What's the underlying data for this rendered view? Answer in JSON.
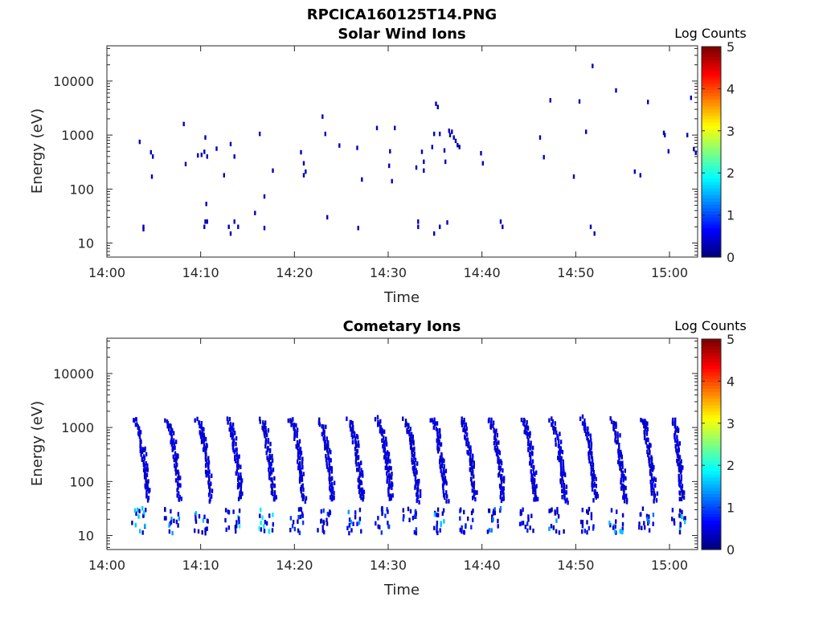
{
  "figure": {
    "title": "RPCICA160125T14.PNG"
  },
  "chart_data": [
    {
      "type": "heatmap",
      "title": "Solar Wind Ions",
      "xlabel": "Time",
      "ylabel": "Energy (eV)",
      "x_ticks": [
        "14:00",
        "14:10",
        "14:20",
        "14:30",
        "14:40",
        "14:50",
        "15:00"
      ],
      "x_range_minutes": [
        0,
        63
      ],
      "y_scale": "log",
      "y_ticks": [
        "10",
        "100",
        "1000",
        "10000"
      ],
      "y_range": [
        5.5,
        45000
      ],
      "colorbar": {
        "label": "Log Counts",
        "ticks": [
          "0",
          "1",
          "2",
          "3",
          "4",
          "5"
        ],
        "range": [
          0,
          5
        ],
        "colormap": "jet"
      },
      "grid": false,
      "points": [
        [
          3.5,
          750,
          0.3
        ],
        [
          3.9,
          20,
          0.3
        ],
        [
          3.9,
          18,
          0.3
        ],
        [
          4.7,
          480,
          0.3
        ],
        [
          4.9,
          400,
          0.3
        ],
        [
          4.8,
          170,
          0.3
        ],
        [
          8.2,
          1600,
          0.3
        ],
        [
          8.4,
          290,
          0.3
        ],
        [
          9.7,
          420,
          0.3
        ],
        [
          10.1,
          430,
          0.3
        ],
        [
          10.4,
          490,
          0.3
        ],
        [
          10.5,
          900,
          0.3
        ],
        [
          10.7,
          400,
          0.3
        ],
        [
          10.6,
          53,
          0.3
        ],
        [
          10.5,
          25,
          0.3
        ],
        [
          10.4,
          20,
          0.3
        ],
        [
          10.7,
          25,
          0.3
        ],
        [
          11.7,
          560,
          0.3
        ],
        [
          12.5,
          180,
          0.3
        ],
        [
          13.0,
          20,
          0.3
        ],
        [
          13.2,
          15,
          0.3
        ],
        [
          13.2,
          680,
          0.3
        ],
        [
          13.6,
          400,
          0.3
        ],
        [
          13.6,
          25,
          0.3
        ],
        [
          14.0,
          20,
          0.3
        ],
        [
          15.8,
          36,
          0.3
        ],
        [
          16.3,
          1050,
          0.3
        ],
        [
          16.8,
          73,
          0.3
        ],
        [
          16.8,
          19,
          0.3
        ],
        [
          17.7,
          220,
          0.3
        ],
        [
          20.7,
          480,
          0.3
        ],
        [
          21.0,
          300,
          0.3
        ],
        [
          21.0,
          180,
          0.3
        ],
        [
          21.2,
          210,
          0.3
        ],
        [
          23.0,
          2200,
          0.3
        ],
        [
          23.3,
          1050,
          0.3
        ],
        [
          23.5,
          30,
          0.3
        ],
        [
          24.8,
          640,
          0.3
        ],
        [
          26.7,
          580,
          0.3
        ],
        [
          26.8,
          19,
          0.3
        ],
        [
          27.2,
          150,
          0.3
        ],
        [
          28.8,
          1350,
          0.3
        ],
        [
          30.2,
          500,
          0.3
        ],
        [
          30.1,
          270,
          0.3
        ],
        [
          30.4,
          140,
          0.3
        ],
        [
          30.7,
          1350,
          0.3
        ],
        [
          33.0,
          250,
          0.3
        ],
        [
          33.2,
          20,
          0.3
        ],
        [
          33.2,
          25,
          0.3
        ],
        [
          33.6,
          490,
          0.3
        ],
        [
          33.8,
          320,
          0.3
        ],
        [
          33.8,
          220,
          0.3
        ],
        [
          34.7,
          600,
          0.3
        ],
        [
          34.9,
          1050,
          0.3
        ],
        [
          34.9,
          15,
          0.3
        ],
        [
          35.1,
          3800,
          0.3
        ],
        [
          35.3,
          3300,
          0.3
        ],
        [
          35.5,
          1050,
          0.3
        ],
        [
          35.5,
          20,
          0.3
        ],
        [
          36.0,
          520,
          0.3
        ],
        [
          36.1,
          320,
          0.3
        ],
        [
          36.3,
          24,
          0.3
        ],
        [
          36.5,
          1200,
          0.3
        ],
        [
          36.6,
          1000,
          0.3
        ],
        [
          36.8,
          1150,
          0.3
        ],
        [
          37.0,
          900,
          0.3
        ],
        [
          37.2,
          780,
          0.3
        ],
        [
          37.4,
          650,
          0.3
        ],
        [
          37.6,
          600,
          0.3
        ],
        [
          39.9,
          460,
          0.3
        ],
        [
          40.1,
          300,
          0.3
        ],
        [
          42.0,
          25,
          0.3
        ],
        [
          42.2,
          20,
          0.3
        ],
        [
          46.2,
          900,
          0.3
        ],
        [
          46.6,
          390,
          0.3
        ],
        [
          47.3,
          4400,
          0.3
        ],
        [
          49.8,
          170,
          0.3
        ],
        [
          50.4,
          4200,
          0.3
        ],
        [
          51.1,
          1150,
          0.3
        ],
        [
          51.6,
          20,
          0.3
        ],
        [
          51.8,
          19000,
          0.3
        ],
        [
          52.0,
          15,
          0.3
        ],
        [
          54.3,
          6700,
          0.3
        ],
        [
          56.3,
          210,
          0.3
        ],
        [
          56.9,
          180,
          0.3
        ],
        [
          57.7,
          4100,
          0.3
        ],
        [
          59.4,
          1100,
          0.3
        ],
        [
          59.5,
          1000,
          0.3
        ],
        [
          59.9,
          500,
          0.3
        ],
        [
          61.9,
          1000,
          0.3
        ],
        [
          62.3,
          4900,
          0.3
        ],
        [
          62.6,
          550,
          0.3
        ],
        [
          62.8,
          470,
          0.3
        ]
      ]
    },
    {
      "type": "heatmap",
      "title": "Cometary Ions",
      "xlabel": "Time",
      "ylabel": "Energy (eV)",
      "x_ticks": [
        "14:00",
        "14:10",
        "14:20",
        "14:30",
        "14:40",
        "14:50",
        "15:00"
      ],
      "x_range_minutes": [
        0,
        63
      ],
      "y_scale": "log",
      "y_ticks": [
        "10",
        "100",
        "1000",
        "10000"
      ],
      "y_range": [
        5.5,
        45000
      ],
      "colorbar": {
        "label": "Log Counts",
        "ticks": [
          "0",
          "1",
          "2",
          "3",
          "4",
          "5"
        ],
        "range": [
          0,
          5
        ],
        "colormap": "jet"
      },
      "grid": false,
      "sweeps": [
        {
          "t": 2.8,
          "dt": 5.0,
          "peak": 1.6
        },
        {
          "t": 6.3,
          "dt": 4.5,
          "peak": 1.4
        },
        {
          "t": 9.5,
          "dt": 4.8,
          "peak": 1.6
        },
        {
          "t": 12.8,
          "dt": 4.5,
          "peak": 1.8
        },
        {
          "t": 16.3,
          "dt": 4.5,
          "peak": 1.8
        },
        {
          "t": 19.5,
          "dt": 4.5,
          "peak": 0.9
        },
        {
          "t": 22.5,
          "dt": 4.8,
          "peak": 0.9
        },
        {
          "t": 25.7,
          "dt": 4.5,
          "peak": 1.4
        },
        {
          "t": 28.7,
          "dt": 4.8,
          "peak": 0.9
        },
        {
          "t": 31.6,
          "dt": 4.8,
          "peak": 0.9
        },
        {
          "t": 34.6,
          "dt": 4.7,
          "peak": 1.6
        },
        {
          "t": 37.7,
          "dt": 4.7,
          "peak": 0.8
        },
        {
          "t": 40.7,
          "dt": 4.6,
          "peak": 1.2
        },
        {
          "t": 44.2,
          "dt": 4.6,
          "peak": 0.8
        },
        {
          "t": 47.3,
          "dt": 4.6,
          "peak": 1.4
        },
        {
          "t": 50.6,
          "dt": 4.6,
          "peak": 0.8
        },
        {
          "t": 53.7,
          "dt": 4.5,
          "peak": 1.6
        },
        {
          "t": 56.9,
          "dt": 4.5,
          "peak": 1.2
        },
        {
          "t": 60.3,
          "dt": 3.0,
          "peak": 1.6
        }
      ]
    }
  ]
}
